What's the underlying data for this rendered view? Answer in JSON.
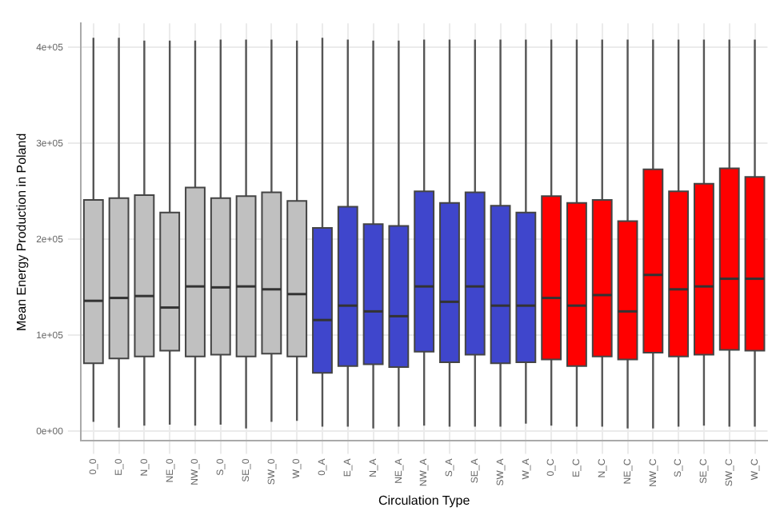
{
  "chart_data": {
    "type": "box",
    "xlabel": "Circulation Type",
    "ylabel": "Mean Energy Production in Poland",
    "categories": [
      "0_0",
      "E_0",
      "N_0",
      "NE_0",
      "NW_0",
      "S_0",
      "SE_0",
      "SW_0",
      "W_0",
      "0_A",
      "E_A",
      "N_A",
      "NE_A",
      "NW_A",
      "S_A",
      "SE_A",
      "SW_A",
      "W_A",
      "0_C",
      "E_C",
      "N_C",
      "NE_C",
      "NW_C",
      "S_C",
      "SE_C",
      "SW_C",
      "W_C"
    ],
    "colors": [
      "#c0c0c0",
      "#c0c0c0",
      "#c0c0c0",
      "#c0c0c0",
      "#c0c0c0",
      "#c0c0c0",
      "#c0c0c0",
      "#c0c0c0",
      "#c0c0c0",
      "#3f46cc",
      "#3f46cc",
      "#3f46cc",
      "#3f46cc",
      "#3f46cc",
      "#3f46cc",
      "#3f46cc",
      "#3f46cc",
      "#3f46cc",
      "#ff0000",
      "#ff0000",
      "#ff0000",
      "#ff0000",
      "#ff0000",
      "#ff0000",
      "#ff0000",
      "#ff0000",
      "#ff0000"
    ],
    "boxes": [
      {
        "low": 10000,
        "q1": 71000,
        "median": 136000,
        "q3": 241000,
        "high": 410000
      },
      {
        "low": 4000,
        "q1": 76000,
        "median": 139000,
        "q3": 243000,
        "high": 410000
      },
      {
        "low": 6000,
        "q1": 78000,
        "median": 141000,
        "q3": 246000,
        "high": 407000
      },
      {
        "low": 7000,
        "q1": 84000,
        "median": 129000,
        "q3": 228000,
        "high": 407000
      },
      {
        "low": 6000,
        "q1": 78000,
        "median": 151000,
        "q3": 254000,
        "high": 407000
      },
      {
        "low": 7000,
        "q1": 80000,
        "median": 150000,
        "q3": 243000,
        "high": 408000
      },
      {
        "low": 3000,
        "q1": 78000,
        "median": 151000,
        "q3": 245000,
        "high": 408000
      },
      {
        "low": 10000,
        "q1": 81000,
        "median": 148000,
        "q3": 249000,
        "high": 408000
      },
      {
        "low": 11000,
        "q1": 78000,
        "median": 143000,
        "q3": 240000,
        "high": 407000
      },
      {
        "low": 5000,
        "q1": 61000,
        "median": 116000,
        "q3": 212000,
        "high": 410000
      },
      {
        "low": 5000,
        "q1": 68000,
        "median": 131000,
        "q3": 234000,
        "high": 408000
      },
      {
        "low": 3000,
        "q1": 70000,
        "median": 125000,
        "q3": 216000,
        "high": 407000
      },
      {
        "low": 5000,
        "q1": 67000,
        "median": 120000,
        "q3": 214000,
        "high": 407000
      },
      {
        "low": 6000,
        "q1": 83000,
        "median": 151000,
        "q3": 250000,
        "high": 408000
      },
      {
        "low": 5000,
        "q1": 72000,
        "median": 135000,
        "q3": 238000,
        "high": 408000
      },
      {
        "low": 5000,
        "q1": 80000,
        "median": 151000,
        "q3": 249000,
        "high": 408000
      },
      {
        "low": 5000,
        "q1": 71000,
        "median": 131000,
        "q3": 235000,
        "high": 408000
      },
      {
        "low": 8000,
        "q1": 72000,
        "median": 131000,
        "q3": 228000,
        "high": 408000
      },
      {
        "low": 6000,
        "q1": 75000,
        "median": 139000,
        "q3": 245000,
        "high": 408000
      },
      {
        "low": 5000,
        "q1": 68000,
        "median": 131000,
        "q3": 238000,
        "high": 408000
      },
      {
        "low": 5000,
        "q1": 78000,
        "median": 142000,
        "q3": 241000,
        "high": 408000
      },
      {
        "low": 3000,
        "q1": 75000,
        "median": 125000,
        "q3": 219000,
        "high": 408000
      },
      {
        "low": 3000,
        "q1": 82000,
        "median": 163000,
        "q3": 273000,
        "high": 408000
      },
      {
        "low": 5000,
        "q1": 78000,
        "median": 148000,
        "q3": 250000,
        "high": 408000
      },
      {
        "low": 6000,
        "q1": 80000,
        "median": 151000,
        "q3": 258000,
        "high": 408000
      },
      {
        "low": 5000,
        "q1": 85000,
        "median": 159000,
        "q3": 274000,
        "high": 408000
      },
      {
        "low": 5000,
        "q1": 84000,
        "median": 159000,
        "q3": 265000,
        "high": 408000
      }
    ],
    "ylim": [
      -10000,
      425000
    ],
    "yticks": [
      {
        "value": 0,
        "label": "0e+00"
      },
      {
        "value": 100000,
        "label": "1e+05"
      },
      {
        "value": 200000,
        "label": "2e+05"
      },
      {
        "value": 300000,
        "label": "3e+05"
      },
      {
        "value": 400000,
        "label": "4e+05"
      }
    ],
    "grid": true
  }
}
